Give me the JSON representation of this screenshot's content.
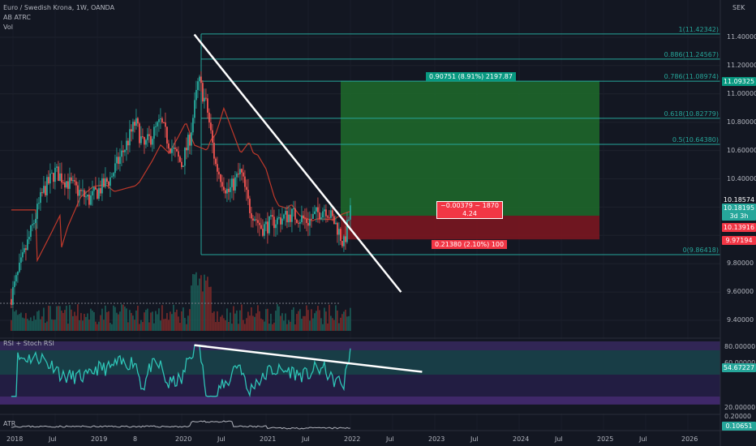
{
  "header": {
    "symbol": "Euro / Swedish Krona, 1W, OANDA",
    "indicator_1": "AB ATRC",
    "indicator_2": "Vol",
    "currency": "SEK"
  },
  "price_axis": {
    "ticks": [
      "11.40000",
      "11.20000",
      "11.00000",
      "10.80000",
      "10.60000",
      "10.40000",
      "10.20000",
      "9.80000",
      "9.60000",
      "9.40000"
    ],
    "tags": [
      {
        "text": "11.09325",
        "color": "#089981"
      },
      {
        "text": "10.18574",
        "color": "#131722"
      },
      {
        "text": "10.18195",
        "color": "#26a69a"
      },
      {
        "text": "3d 3h",
        "color": "#26a69a"
      },
      {
        "text": "10.13916",
        "color": "#f23645"
      },
      {
        "text": "9.97194",
        "color": "#f23645"
      }
    ]
  },
  "fib_levels": [
    {
      "label": "1(11.42342)",
      "value": 11.42342
    },
    {
      "label": "0.886(11.24567)",
      "value": 11.24567
    },
    {
      "label": "0.786(11.08974)",
      "value": 11.08974
    },
    {
      "label": "0.618(10.82779)",
      "value": 10.82779
    },
    {
      "label": "0.5(10.64380)",
      "value": 10.6438
    },
    {
      "label": "0(9.86418)",
      "value": 9.86418
    }
  ],
  "position": {
    "entry": 10.13916,
    "target": 11.09325,
    "stop": 9.97194,
    "target_label": "0.90751 (8.91%) 2197.87",
    "stop_label": "0.21380 (2.10%) 100",
    "center_line1": "−0.00379 ~ 1870",
    "center_line2": "4.24"
  },
  "rsi_panel": {
    "title": "RSI + Stoch RSI",
    "ticks": [
      "80.00000",
      "60.00000",
      "20.00000"
    ],
    "tag": "54.67227"
  },
  "atr_panel": {
    "title": "ATR",
    "ticks": [
      "0.20000"
    ],
    "tag": "0.10651"
  },
  "time_axis": [
    "2018",
    "Jul",
    "2019",
    "8",
    "2020",
    "Jul",
    "2021",
    "Jul",
    "2022",
    "Jul",
    "2023",
    "Jul",
    "2024",
    "Jul",
    "2025",
    "Jul",
    "2026"
  ],
  "chart_data": {
    "type": "candlestick",
    "title": "Euro / Swedish Krona, 1W, OANDA",
    "x": [
      "2018",
      "2019",
      "2020",
      "2021",
      "2022"
    ],
    "ylim": [
      9.4,
      11.5
    ],
    "series": [
      {
        "name": "price",
        "values": [
          9.95,
          10.35,
          10.55,
          10.25,
          10.18
        ]
      },
      {
        "name": "ma",
        "values": [
          9.8,
          10.1,
          10.5,
          10.25,
          10.15
        ]
      }
    ],
    "trendline_price": {
      "from": [
        2020.15,
        11.42
      ],
      "to": [
        2022.6,
        9.6
      ]
    },
    "trendline_rsi": {
      "from": [
        2020.15,
        78
      ],
      "to": [
        2022.85,
        53
      ]
    }
  }
}
